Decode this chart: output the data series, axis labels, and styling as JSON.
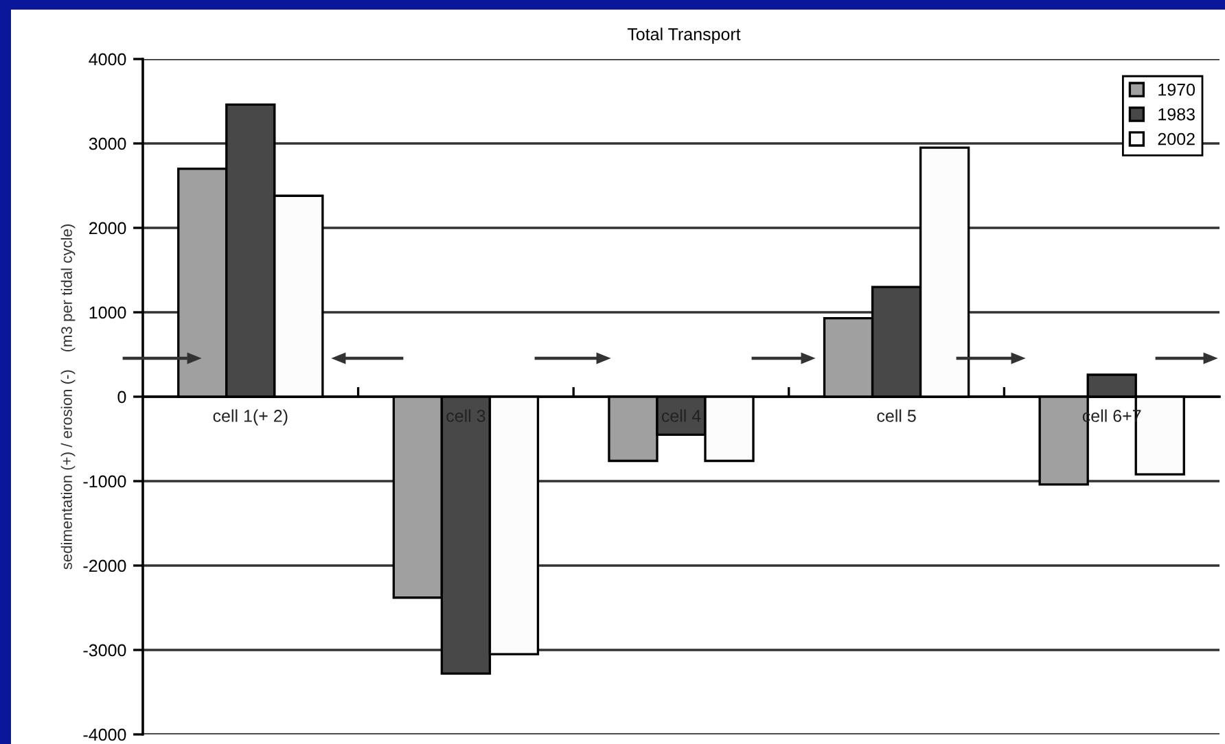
{
  "chart_data": {
    "type": "bar",
    "title": "Total Transport",
    "ylabel": "sedimentation (+) / erosion (-)    (m3 per tidal cycle)",
    "categories": [
      "cell 1(+ 2)",
      "cell 3",
      "cell 4",
      "cell 5",
      "cell 6+7"
    ],
    "series": [
      {
        "name": "1970",
        "color": "#a0a0a0",
        "values": [
          2700,
          -2380,
          -760,
          930,
          -1040
        ]
      },
      {
        "name": "1983",
        "color": "#484848",
        "values": [
          3460,
          -3280,
          -450,
          1300,
          260
        ]
      },
      {
        "name": "2002",
        "color": "#fcfcfc",
        "values": [
          2380,
          -3050,
          -760,
          2950,
          -920
        ]
      }
    ],
    "ylim": [
      -4000,
      4000
    ],
    "yticks": [
      -4000,
      -3000,
      -2000,
      -1000,
      0,
      1000,
      2000,
      3000,
      4000
    ],
    "grid": "y",
    "legend": "top right"
  }
}
